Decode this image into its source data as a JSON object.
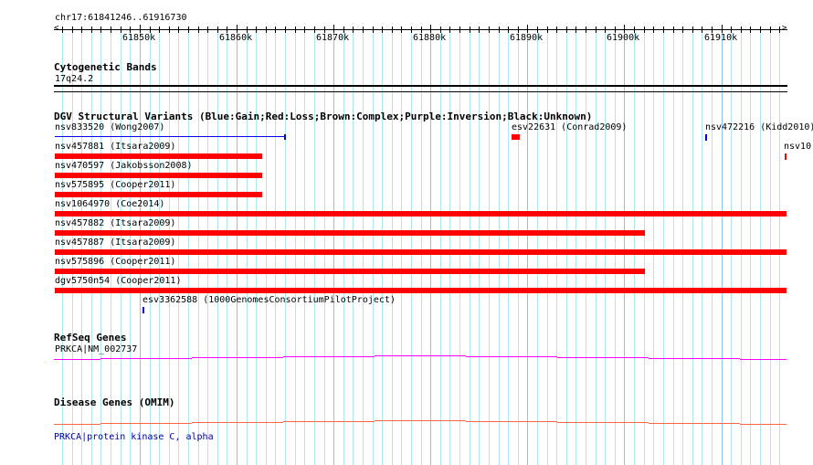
{
  "region": {
    "label": "chr17:61841246..61916730",
    "start": 61841246,
    "end": 61916730
  },
  "ruler": {
    "tick_labels": [
      "61850k",
      "61860k",
      "61870k",
      "61880k",
      "61890k",
      "61900k",
      "61910k"
    ]
  },
  "cytoband": {
    "title": "Cytogenetic Bands",
    "band": "17q24.2"
  },
  "dgv": {
    "title": "DGV Structural Variants (Blue:Gain;Red:Loss;Brown:Complex;Purple:Inversion;Black:Unknown)",
    "colors": {
      "gain": "#0000ee",
      "loss": "#ff0000"
    },
    "variants": [
      {
        "label": "nsv833520 (Wong2007)",
        "type": "gain",
        "start": 61841246,
        "end": 61864990,
        "row": 0,
        "style": "line"
      },
      {
        "label": "esv22631 (Conrad2009)",
        "type": "loss",
        "start": 61888360,
        "end": 61889210,
        "row": 0
      },
      {
        "label": "nsv472216 (Kidd2010)",
        "type": "gain",
        "start": 61908340,
        "end": 61908540,
        "row": 0
      },
      {
        "label": "nsv457881 (Itsara2009)",
        "type": "loss",
        "start": 61841246,
        "end": 61862640,
        "row": 1
      },
      {
        "label": "nsv10",
        "type": "loss",
        "start": 61916560,
        "end": 61916730,
        "row": 1
      },
      {
        "label": "nsv470597 (Jakobsson2008)",
        "type": "loss",
        "start": 61841246,
        "end": 61862640,
        "row": 2
      },
      {
        "label": "nsv575895 (Cooper2011)",
        "type": "loss",
        "start": 61841246,
        "end": 61862640,
        "row": 3
      },
      {
        "label": "nsv1064970 (Coe2014)",
        "type": "loss",
        "start": 61841246,
        "end": 61916730,
        "row": 4
      },
      {
        "label": "nsv457882 (Itsara2009)",
        "type": "loss",
        "start": 61841246,
        "end": 61902120,
        "row": 5
      },
      {
        "label": "nsv457887 (Itsara2009)",
        "type": "loss",
        "start": 61841246,
        "end": 61916730,
        "row": 6
      },
      {
        "label": "nsv575896 (Cooper2011)",
        "type": "loss",
        "start": 61841246,
        "end": 61902120,
        "row": 7
      },
      {
        "label": "dgv5750n54 (Cooper2011)",
        "type": "loss",
        "start": 61841246,
        "end": 61916730,
        "row": 8
      },
      {
        "label": "esv3362588 (1000GenomesConsortiumPilotProject)",
        "type": "gain",
        "start": 61850300,
        "end": 61850500,
        "row": 9
      }
    ]
  },
  "refseq": {
    "title": "RefSeq Genes",
    "gene": "PRKCA|NM_002737",
    "color": "#ff00ff"
  },
  "omim": {
    "title": "Disease Genes (OMIM)",
    "gene": "PRKCA|protein kinase C, alpha",
    "color": "#ff6644",
    "label_color": "#000099"
  }
}
